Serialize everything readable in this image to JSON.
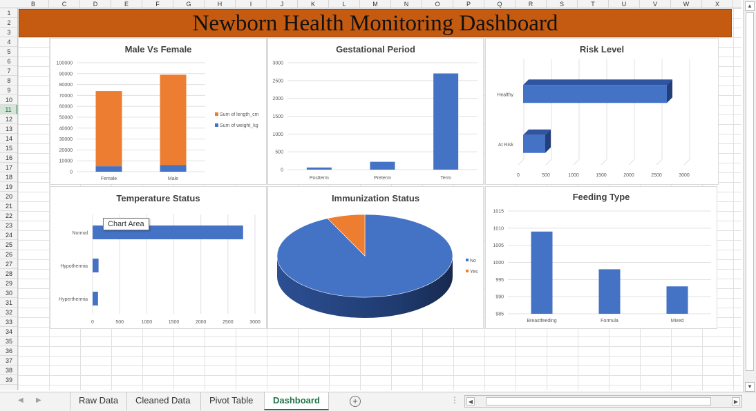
{
  "columns": [
    "B",
    "C",
    "D",
    "E",
    "F",
    "G",
    "H",
    "I",
    "J",
    "K",
    "L",
    "M",
    "N",
    "O",
    "P",
    "Q",
    "R",
    "S",
    "T",
    "U",
    "V",
    "W",
    "X"
  ],
  "rows": [
    "1",
    "2",
    "3",
    "4",
    "5",
    "6",
    "7",
    "8",
    "9",
    "10",
    "11",
    "12",
    "13",
    "14",
    "15",
    "16",
    "17",
    "18",
    "19",
    "20",
    "21",
    "22",
    "23",
    "24",
    "25",
    "26",
    "27",
    "28",
    "29",
    "30",
    "31",
    "32",
    "33",
    "34",
    "35",
    "36",
    "37",
    "38",
    "39"
  ],
  "active_row": "11",
  "dashboard_title": "Newborn Health Monitoring Dashboard",
  "tooltip": "Chart Area",
  "colors": {
    "blue": "#4472c4",
    "orange": "#ed7d31",
    "banner": "#c55a11",
    "active": "#217346"
  },
  "sheet_tabs": [
    {
      "label": "Raw Data",
      "active": false
    },
    {
      "label": "Cleaned Data",
      "active": false
    },
    {
      "label": "Pivot Table",
      "active": false
    },
    {
      "label": "Dashboard",
      "active": true
    }
  ],
  "icons": {
    "add_sheet": "plus-circle-icon",
    "scroll_left": "triangle-left-icon",
    "scroll_right": "triangle-right-icon"
  },
  "chart_data": [
    {
      "id": "male-vs-female",
      "type": "bar",
      "stacked": true,
      "title": "Male Vs Female",
      "categories": [
        "Female",
        "Male"
      ],
      "series": [
        {
          "name": "Sum of weight_kg",
          "color": "#4472c4",
          "values": [
            5000,
            6000
          ]
        },
        {
          "name": "Sum of length_cm",
          "color": "#ed7d31",
          "values": [
            69000,
            83000
          ]
        }
      ],
      "ylim": [
        0,
        100000
      ],
      "yticks": [
        "0",
        "10000",
        "20000",
        "30000",
        "40000",
        "50000",
        "60000",
        "70000",
        "80000",
        "90000",
        "100000"
      ],
      "legend": "right",
      "grid": true
    },
    {
      "id": "gestational-period",
      "type": "bar",
      "title": "Gestational Period",
      "categories": [
        "Postterm",
        "Preterm",
        "Term"
      ],
      "values": [
        60,
        220,
        2700
      ],
      "ylim": [
        0,
        3000
      ],
      "yticks": [
        "0",
        "500",
        "1000",
        "1500",
        "2000",
        "2500",
        "3000"
      ],
      "grid": true
    },
    {
      "id": "risk-level",
      "type": "bar",
      "orientation": "horizontal",
      "three_d": true,
      "title": "Risk Level",
      "categories": [
        "Healthy",
        "At Risk"
      ],
      "values": [
        2600,
        400
      ],
      "xlim": [
        0,
        3000
      ],
      "xticks": [
        "0",
        "500",
        "1000",
        "1500",
        "2000",
        "2500",
        "3000"
      ],
      "grid": true
    },
    {
      "id": "temperature-status",
      "type": "bar",
      "orientation": "horizontal",
      "title": "Temperature Status",
      "categories": [
        "Normal",
        "Hypothermia",
        "Hyperthermia"
      ],
      "values": [
        2780,
        110,
        100
      ],
      "xlim": [
        0,
        3000
      ],
      "xticks": [
        "0",
        "500",
        "1000",
        "1500",
        "2000",
        "2500",
        "3000"
      ],
      "grid": true
    },
    {
      "id": "immunization-status",
      "type": "pie",
      "three_d": true,
      "title": "Immunization Status",
      "labels": [
        "No",
        "Yes"
      ],
      "values": [
        93,
        7
      ],
      "colors": [
        "#4472c4",
        "#ed7d31"
      ],
      "legend": "right"
    },
    {
      "id": "feeding-type",
      "type": "bar",
      "title": "Feeding Type",
      "categories": [
        "Breastfeeding",
        "Formula",
        "Mixed"
      ],
      "values": [
        1009,
        998,
        993
      ],
      "ylim": [
        985,
        1015
      ],
      "yticks": [
        "985",
        "990",
        "995",
        "1000",
        "1005",
        "1010",
        "1015"
      ],
      "grid": true
    }
  ]
}
